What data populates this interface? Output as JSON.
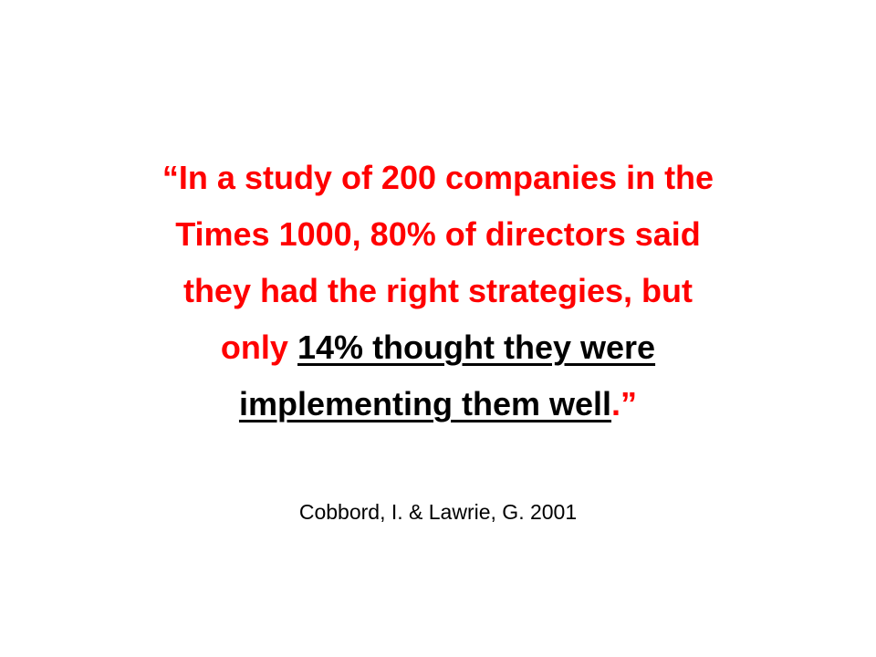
{
  "quote": {
    "lines": [
      [
        {
          "text": "“In a study of 200 companies in the"
        }
      ],
      [
        {
          "text": "Times 1000, 80% of directors said"
        }
      ],
      [
        {
          "text": "they had the right strategies, but"
        }
      ],
      [
        {
          "text": "only"
        },
        {
          "text": "14% thought they were"
        }
      ],
      [
        {
          "text": "implementing them well"
        },
        {
          "text": ".”"
        }
      ]
    ]
  },
  "citation": "Cobbord, I. & Lawrie, G. 2001"
}
